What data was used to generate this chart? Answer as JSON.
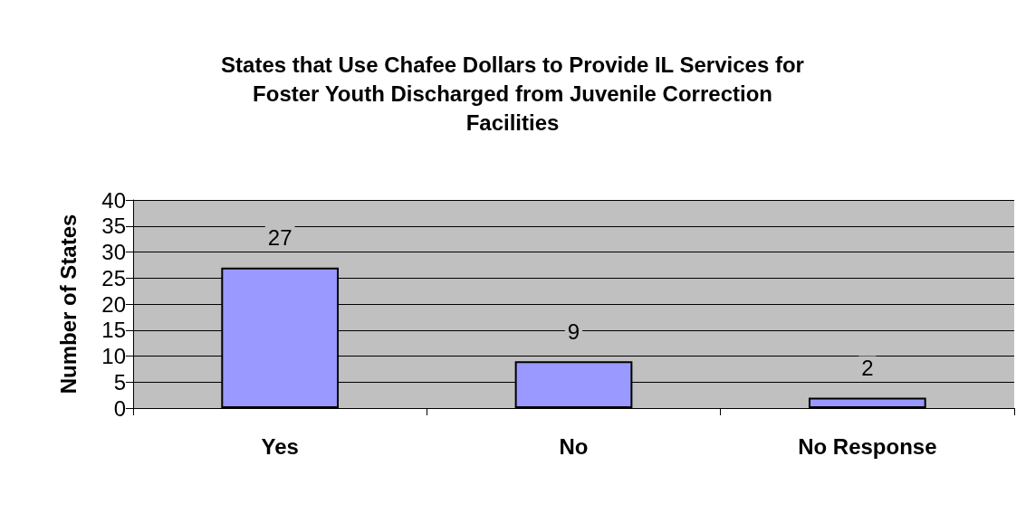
{
  "chart_data": {
    "type": "bar",
    "title": "States that Use Chafee Dollars to Provide IL Services for\nFoster Youth Discharged from Juvenile Correction\nFacilities",
    "ylabel": "Number of States",
    "categories": [
      "Yes",
      "No",
      "No Response"
    ],
    "values": [
      27,
      9,
      2
    ],
    "color": "#9999ff",
    "ylim": [
      0,
      40
    ],
    "yticks": [
      0,
      5,
      10,
      15,
      20,
      25,
      30,
      35,
      40
    ],
    "grid": "y",
    "data_labels": true
  }
}
